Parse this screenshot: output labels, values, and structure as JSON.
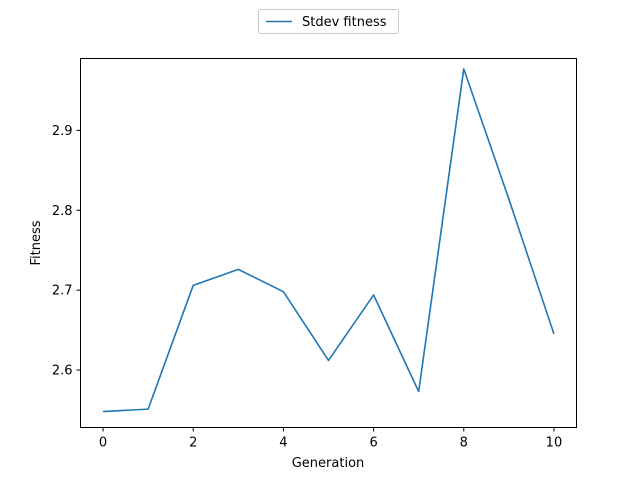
{
  "chart_data": {
    "type": "line",
    "xlabel": "Generation",
    "ylabel": "Fitness",
    "xlim": [
      -0.5,
      10.5
    ],
    "ylim": [
      2.528,
      2.99
    ],
    "xticks": [
      0,
      2,
      4,
      6,
      8,
      10
    ],
    "yticks": [
      2.6,
      2.7,
      2.8,
      2.9
    ],
    "grid": false,
    "legend_position": "above-center",
    "series": [
      {
        "name": "Stdev fitness",
        "color": "#1f77b4",
        "x": [
          0,
          1,
          2,
          3,
          4,
          5,
          6,
          7,
          8,
          9,
          10
        ],
        "values": [
          2.548,
          2.551,
          2.706,
          2.726,
          2.698,
          2.612,
          2.694,
          2.573,
          2.977,
          2.814,
          2.645
        ]
      }
    ]
  }
}
